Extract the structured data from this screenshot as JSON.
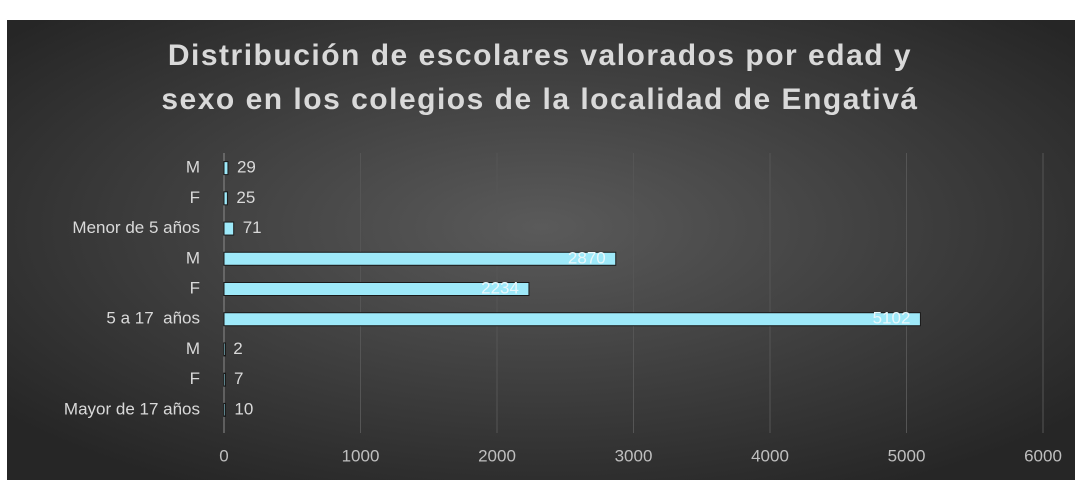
{
  "chart_data": {
    "type": "hbar",
    "title": "Distribución de escolares valorados por edad y sexo en los colegios de la localidad de Engativá",
    "categories": [
      "M",
      "F",
      "Menor de 5 años",
      "M",
      "F",
      "5 a 17  años",
      "M",
      "F",
      "Mayor de 17 años"
    ],
    "values": [
      29,
      25,
      71,
      2870,
      2234,
      5102,
      2,
      7,
      10
    ],
    "color": "#9ee9f9",
    "xlim": [
      0,
      6000
    ],
    "xticks": [
      0,
      1000,
      2000,
      3000,
      4000,
      5000,
      6000
    ],
    "grid": true
  }
}
